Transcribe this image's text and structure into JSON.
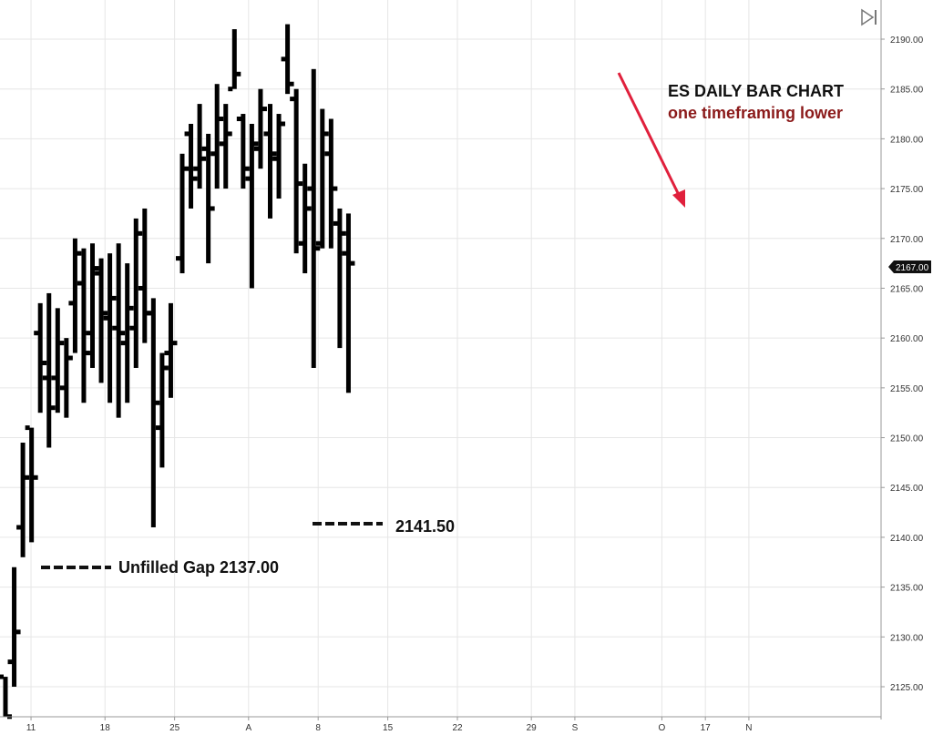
{
  "chart_data": {
    "type": "ohlc",
    "title": "",
    "ylim": [
      2122,
      2194
    ],
    "y_ticks": [
      2125,
      2130,
      2135,
      2140,
      2145,
      2150,
      2155,
      2160,
      2165,
      2170,
      2175,
      2180,
      2185,
      2190
    ],
    "x_ticks": [
      {
        "i": 1,
        "label": "11"
      },
      {
        "i": 9.5,
        "label": "18"
      },
      {
        "i": 17.5,
        "label": "25"
      },
      {
        "i": 26,
        "label": "A"
      },
      {
        "i": 34,
        "label": "8"
      },
      {
        "i": 42,
        "label": "15"
      },
      {
        "i": 50,
        "label": "22"
      },
      {
        "i": 58.5,
        "label": "29"
      },
      {
        "i": 63.5,
        "label": "S"
      },
      {
        "i": 73.5,
        "label": "O"
      },
      {
        "i": 78.5,
        "label": "17"
      },
      {
        "i": 83.5,
        "label": "N"
      }
    ],
    "bars": [
      {
        "o": 2126,
        "h": 2126,
        "l": 2122,
        "c": 2122
      },
      {
        "o": 2127.5,
        "h": 2137,
        "l": 2125,
        "c": 2130.5
      },
      {
        "o": 2141,
        "h": 2149.5,
        "l": 2138,
        "c": 2146
      },
      {
        "o": 2151,
        "h": 2151,
        "l": 2139.5,
        "c": 2146
      },
      {
        "o": 2160.5,
        "h": 2163.5,
        "l": 2152.5,
        "c": 2157.5
      },
      {
        "o": 2156,
        "h": 2164.5,
        "l": 2149,
        "c": 2153
      },
      {
        "o": 2156,
        "h": 2163,
        "l": 2152.5,
        "c": 2159.5
      },
      {
        "o": 2155,
        "h": 2160,
        "l": 2152,
        "c": 2158
      },
      {
        "o": 2163.5,
        "h": 2170,
        "l": 2158.5,
        "c": 2168.5
      },
      {
        "o": 2165.5,
        "h": 2169,
        "l": 2153.5,
        "c": 2158.5
      },
      {
        "o": 2160.5,
        "h": 2169.5,
        "l": 2157,
        "c": 2167
      },
      {
        "o": 2166.5,
        "h": 2168,
        "l": 2155.5,
        "c": 2162.5
      },
      {
        "o": 2162,
        "h": 2168.5,
        "l": 2153.5,
        "c": 2164
      },
      {
        "o": 2161,
        "h": 2169.5,
        "l": 2152,
        "c": 2160.5
      },
      {
        "o": 2159.5,
        "h": 2167.5,
        "l": 2153.5,
        "c": 2163
      },
      {
        "o": 2161,
        "h": 2172,
        "l": 2157,
        "c": 2170.5
      },
      {
        "o": 2165,
        "h": 2173,
        "l": 2159.5,
        "c": 2162.5
      },
      {
        "o": 2162.5,
        "h": 2164,
        "l": 2141,
        "c": 2153.5
      },
      {
        "o": 2151,
        "h": 2158.5,
        "l": 2147,
        "c": 2157
      },
      {
        "o": 2158.5,
        "h": 2163.5,
        "l": 2154,
        "c": 2159.5
      },
      {
        "o": 2168,
        "h": 2178.5,
        "l": 2166.5,
        "c": 2177
      },
      {
        "o": 2180.5,
        "h": 2181.5,
        "l": 2173,
        "c": 2176
      },
      {
        "o": 2177,
        "h": 2183.5,
        "l": 2175,
        "c": 2178
      },
      {
        "o": 2179,
        "h": 2180.5,
        "l": 2167.5,
        "c": 2173
      },
      {
        "o": 2178.5,
        "h": 2185.5,
        "l": 2175,
        "c": 2182
      },
      {
        "o": 2179.5,
        "h": 2183.5,
        "l": 2175,
        "c": 2180.5
      },
      {
        "o": 2185,
        "h": 2191,
        "l": 2185,
        "c": 2186.5
      },
      {
        "o": 2182,
        "h": 2182.5,
        "l": 2175,
        "c": 2177
      },
      {
        "o": 2176,
        "h": 2181.5,
        "l": 2165,
        "c": 2179.5
      },
      {
        "o": 2179,
        "h": 2185,
        "l": 2177,
        "c": 2183
      },
      {
        "o": 2180.5,
        "h": 2183.5,
        "l": 2172,
        "c": 2178.5
      },
      {
        "o": 2178,
        "h": 2182.5,
        "l": 2174,
        "c": 2181.5
      },
      {
        "o": 2188,
        "h": 2191.5,
        "l": 2184.5,
        "c": 2185.5
      },
      {
        "o": 2184,
        "h": 2185,
        "l": 2168.5,
        "c": 2175.5
      },
      {
        "o": 2169.5,
        "h": 2177.5,
        "l": 2166.5,
        "c": 2173
      },
      {
        "o": 2175,
        "h": 2187,
        "l": 2157,
        "c": 2169
      },
      {
        "o": 2169.5,
        "h": 2183,
        "l": 2169,
        "c": 2180.5
      },
      {
        "o": 2178.5,
        "h": 2182,
        "l": 2169,
        "c": 2175
      },
      {
        "o": 2171.5,
        "h": 2173,
        "l": 2159,
        "c": 2170.5
      },
      {
        "o": 2168.5,
        "h": 2172.5,
        "l": 2154.5,
        "c": 2167.5
      }
    ],
    "last_price": "2167.00"
  },
  "annotations": {
    "title": "ES DAILY BAR CHART",
    "subtitle": "one timeframing lower",
    "gap_label": "Unfilled Gap 2137.00",
    "low_label": "2141.50"
  },
  "colors": {
    "bars": "#000000",
    "grid": "#e6e6e6",
    "arrow": "#e0203c",
    "subtitle": "#8b1a1a",
    "badge": "#111111"
  },
  "icons": {
    "scroll_end": "skip-to-end-icon"
  }
}
